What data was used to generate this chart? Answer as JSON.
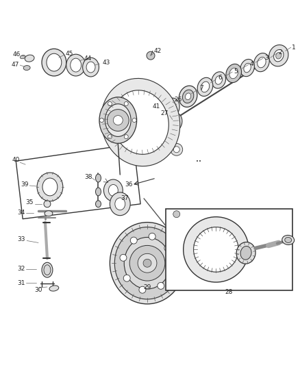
{
  "bg_color": "#ffffff",
  "fig_width": 4.38,
  "fig_height": 5.33,
  "dpi": 100,
  "line_color": "#333333",
  "part_fill": "#e0e0e0",
  "part_fill2": "#c8c8c8",
  "label_fontsize": 6.5
}
